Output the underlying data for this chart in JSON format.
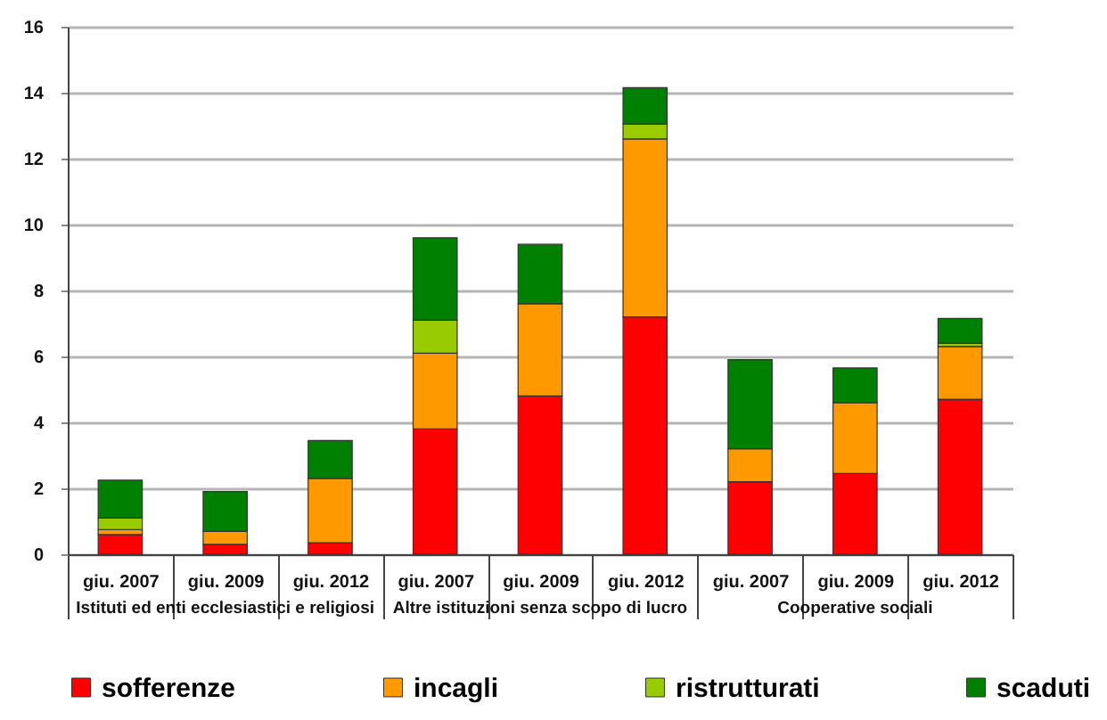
{
  "chart_data": {
    "type": "bar",
    "stacked": true,
    "categories": [
      "giu. 2007",
      "giu. 2009",
      "giu. 2012",
      "giu. 2007",
      "giu. 2009",
      "giu. 2012",
      "giu. 2007",
      "giu. 2009",
      "giu. 2012"
    ],
    "annotations": [
      "Istituti ed enti ecclesiastici e religiosi",
      "Altre istituzioni senza scopo di lucro",
      "Cooperative sociali"
    ],
    "series": [
      {
        "name": "sofferenze",
        "color": "#ff0000",
        "values": [
          0.6,
          0.3,
          0.35,
          3.8,
          4.8,
          7.2,
          2.2,
          2.45,
          4.7
        ]
      },
      {
        "name": "incagli",
        "color": "#ff9900",
        "values": [
          0.15,
          0.4,
          1.95,
          2.3,
          2.8,
          5.4,
          1.0,
          2.15,
          1.6
        ]
      },
      {
        "name": "ristrutturati",
        "color": "#99cc00",
        "values": [
          0.35,
          null,
          null,
          1.0,
          null,
          0.45,
          null,
          null,
          0.1
        ]
      },
      {
        "name": "scaduti",
        "color": "#008000",
        "values": [
          1.15,
          1.2,
          1.15,
          2.5,
          1.8,
          1.1,
          2.7,
          1.05,
          0.75
        ]
      }
    ],
    "ylim": [
      0,
      16
    ],
    "yticks": [
      0,
      2,
      4,
      6,
      8,
      10,
      12,
      14,
      16
    ],
    "grid": "y",
    "legend": "bottom"
  }
}
